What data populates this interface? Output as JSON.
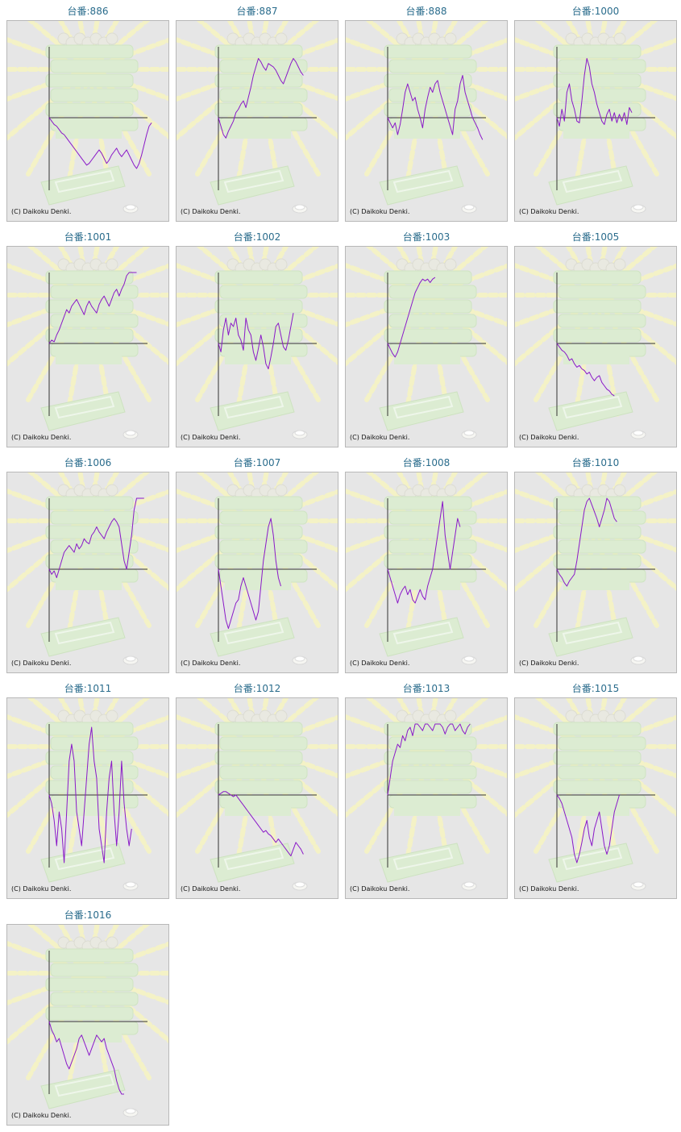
{
  "chart_data": [
    {
      "type": "line",
      "title": "台番:886",
      "copyright": "(C) Daikoku Denki.",
      "y": [
        0,
        -2,
        -4,
        -5,
        -7,
        -9,
        -10,
        -12,
        -14,
        -16,
        -18,
        -20,
        -22,
        -24,
        -26,
        -28,
        -27,
        -25,
        -23,
        -21,
        -19,
        -21,
        -24,
        -27,
        -25,
        -22,
        -20,
        -18,
        -21,
        -23,
        -21,
        -19,
        -22,
        -25,
        -28,
        -30,
        -27,
        -22,
        -16,
        -10,
        -5,
        -3
      ]
    },
    {
      "type": "line",
      "title": "台番:887",
      "copyright": "(C) Daikoku Denki.",
      "y": [
        0,
        -5,
        -10,
        -12,
        -8,
        -5,
        -2,
        3,
        5,
        8,
        10,
        6,
        12,
        18,
        25,
        30,
        35,
        33,
        30,
        28,
        32,
        31,
        30,
        28,
        25,
        22,
        20,
        24,
        28,
        32,
        35,
        33,
        30,
        27,
        25
      ]
    },
    {
      "type": "line",
      "title": "台番:888",
      "copyright": "(C) Daikoku Denki.",
      "y": [
        0,
        -3,
        -6,
        -3,
        -10,
        -4,
        5,
        15,
        20,
        15,
        10,
        12,
        5,
        0,
        -6,
        5,
        12,
        18,
        15,
        20,
        22,
        15,
        10,
        5,
        0,
        -5,
        -10,
        5,
        10,
        20,
        25,
        15,
        10,
        5,
        0,
        -3,
        -6,
        -10,
        -13
      ]
    },
    {
      "type": "line",
      "title": "台番:1000",
      "copyright": "(C) Daikoku Denki.",
      "y": [
        0,
        -5,
        5,
        -2,
        15,
        20,
        10,
        5,
        -2,
        -3,
        10,
        25,
        35,
        30,
        20,
        15,
        8,
        3,
        -2,
        -4,
        2,
        5,
        -2,
        3,
        -3,
        2,
        -2,
        3,
        -4,
        6,
        3
      ]
    },
    {
      "type": "line",
      "title": "台番:1001",
      "copyright": "(C) Daikoku Denki.",
      "y": [
        0,
        2,
        1,
        5,
        8,
        12,
        16,
        20,
        18,
        22,
        24,
        26,
        23,
        20,
        17,
        22,
        25,
        22,
        20,
        18,
        23,
        26,
        28,
        25,
        22,
        26,
        30,
        32,
        28,
        32,
        35,
        40,
        45,
        48,
        52,
        54
      ]
    },
    {
      "type": "line",
      "title": "台番:1002",
      "copyright": "(C) Daikoku Denki.",
      "y": [
        0,
        -5,
        8,
        15,
        5,
        12,
        10,
        15,
        5,
        2,
        -4,
        15,
        8,
        5,
        -5,
        -10,
        -3,
        5,
        -2,
        -12,
        -15,
        -8,
        0,
        10,
        12,
        5,
        -2,
        -4,
        2,
        10,
        18
      ]
    },
    {
      "type": "line",
      "title": "台番:1003",
      "copyright": "(C) Daikoku Denki.",
      "y": [
        0,
        -3,
        -6,
        -8,
        -5,
        0,
        5,
        10,
        15,
        20,
        25,
        30,
        33,
        36,
        38,
        37,
        38,
        36,
        38,
        39
      ]
    },
    {
      "type": "line",
      "title": "台番:1005",
      "copyright": "(C) Daikoku Denki.",
      "y": [
        0,
        -2,
        -4,
        -5,
        -7,
        -10,
        -9,
        -12,
        -14,
        -13,
        -15,
        -16,
        -18,
        -17,
        -20,
        -22,
        -20,
        -19,
        -23,
        -25,
        -27,
        -28,
        -30,
        -31
      ]
    },
    {
      "type": "line",
      "title": "台番:1006",
      "copyright": "(C) Daikoku Denki.",
      "y": [
        0,
        -3,
        -1,
        -5,
        0,
        5,
        10,
        12,
        14,
        12,
        10,
        15,
        12,
        14,
        18,
        16,
        15,
        20,
        22,
        25,
        22,
        20,
        18,
        22,
        25,
        28,
        30,
        28,
        25,
        15,
        5,
        0,
        10,
        20,
        35,
        50,
        55,
        60,
        58
      ]
    },
    {
      "type": "line",
      "title": "台番:1007",
      "copyright": "(C) Daikoku Denki.",
      "y": [
        0,
        -10,
        -20,
        -30,
        -35,
        -30,
        -25,
        -20,
        -18,
        -10,
        -5,
        -10,
        -15,
        -20,
        -25,
        -30,
        -25,
        -10,
        5,
        15,
        25,
        30,
        20,
        5,
        -5,
        -10
      ]
    },
    {
      "type": "line",
      "title": "台番:1008",
      "copyright": "(C) Daikoku Denki.",
      "y": [
        0,
        -5,
        -10,
        -15,
        -20,
        -15,
        -12,
        -10,
        -15,
        -12,
        -18,
        -20,
        -16,
        -12,
        -16,
        -18,
        -10,
        -5,
        0,
        10,
        20,
        30,
        40,
        20,
        10,
        0,
        10,
        20,
        30,
        25
      ]
    },
    {
      "type": "line",
      "title": "台番:1010",
      "copyright": "(C) Daikoku Denki.",
      "y": [
        0,
        -3,
        -5,
        -8,
        -10,
        -7,
        -5,
        -3,
        5,
        15,
        25,
        35,
        40,
        42,
        38,
        34,
        30,
        25,
        30,
        35,
        42,
        40,
        35,
        30,
        28
      ]
    },
    {
      "type": "line",
      "title": "台番:1011",
      "copyright": "(C) Daikoku Denki.",
      "y": [
        0,
        -5,
        -15,
        -30,
        -10,
        -20,
        -40,
        -10,
        20,
        30,
        20,
        -10,
        -20,
        -30,
        -10,
        10,
        30,
        40,
        20,
        10,
        -20,
        -30,
        -40,
        -10,
        10,
        20,
        -10,
        -30,
        -10,
        20,
        -5,
        -20,
        -30,
        -20
      ]
    },
    {
      "type": "line",
      "title": "台番:1012",
      "copyright": "(C) Daikoku Denki.",
      "y": [
        0,
        1,
        2,
        2,
        1,
        0,
        -1,
        0,
        -2,
        -4,
        -6,
        -8,
        -10,
        -12,
        -14,
        -16,
        -18,
        -20,
        -22,
        -21,
        -23,
        -24,
        -26,
        -28,
        -26,
        -28,
        -30,
        -32,
        -34,
        -36,
        -32,
        -28,
        -30,
        -32,
        -35
      ]
    },
    {
      "type": "line",
      "title": "台番:1013",
      "copyright": "(C) Daikoku Denki.",
      "y": [
        0,
        10,
        20,
        25,
        30,
        28,
        35,
        32,
        38,
        40,
        35,
        42,
        45,
        40,
        38,
        42,
        45,
        40,
        38,
        42,
        46,
        44,
        40,
        36,
        40,
        44,
        42,
        38,
        40,
        42,
        38,
        36,
        40,
        42
      ]
    },
    {
      "type": "line",
      "title": "台番:1015",
      "copyright": "(C) Daikoku Denki.",
      "y": [
        0,
        -2,
        -5,
        -10,
        -15,
        -20,
        -25,
        -35,
        -40,
        -35,
        -28,
        -20,
        -15,
        -25,
        -30,
        -20,
        -15,
        -10,
        -20,
        -30,
        -35,
        -30,
        -20,
        -10,
        -5,
        0
      ]
    },
    {
      "type": "line",
      "title": "台番:1016",
      "copyright": "(C) Daikoku Denki.",
      "y": [
        0,
        -5,
        -8,
        -12,
        -10,
        -15,
        -20,
        -25,
        -28,
        -24,
        -20,
        -16,
        -10,
        -8,
        -12,
        -16,
        -20,
        -16,
        -12,
        -8,
        -10,
        -12,
        -10,
        -16,
        -20,
        -24,
        -28,
        -35,
        -40,
        -45,
        -48
      ]
    }
  ]
}
